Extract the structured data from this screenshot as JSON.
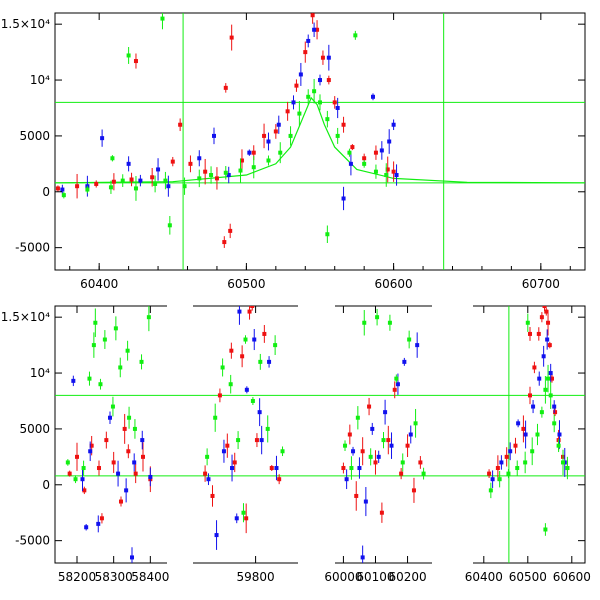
{
  "colors": {
    "red": "#ee1111",
    "blue": "#1111ee",
    "green": "#11ee11",
    "frame": "#000000"
  },
  "chart_data": [
    {
      "type": "scatter",
      "title": "",
      "xlabel": "",
      "ylabel": "",
      "xlim": [
        60370,
        60730
      ],
      "ylim": [
        -7000,
        16000
      ],
      "x_ticks": [
        "60400",
        "60500",
        "60600",
        "60700"
      ],
      "y_ticks": [
        "-5000",
        "0",
        "5000",
        "10⁴",
        "1.5×10⁴"
      ],
      "reference_lines": {
        "horizontal": [
          800,
          8000
        ],
        "vertical": [
          60457,
          60634
        ]
      },
      "model_curve": {
        "color": "green",
        "x": [
          60370,
          60450,
          60500,
          60520,
          60530,
          60538,
          60544,
          60548,
          60553,
          60560,
          60575,
          60600,
          60650,
          60730
        ],
        "y": [
          800,
          900,
          1500,
          2500,
          4000,
          6500,
          8400,
          7800,
          6000,
          4000,
          2000,
          1200,
          850,
          800
        ]
      },
      "series": [
        {
          "color": "red",
          "x": [
            60372,
            60385,
            60398,
            60410,
            60422,
            60425,
            60436,
            60450,
            60455,
            60462,
            60472,
            60480,
            60486,
            60490,
            60497,
            60505,
            60512,
            60520,
            60528,
            60534,
            60540,
            60545,
            60548,
            60552,
            60556,
            60560,
            60566,
            60572,
            60580,
            60588,
            60596,
            60600,
            60485,
            60489
          ],
          "y": [
            300,
            500,
            700,
            900,
            1100,
            11700,
            1300,
            2700,
            6000,
            2500,
            1800,
            1200,
            9300,
            13800,
            2800,
            3500,
            5000,
            5400,
            7200,
            9500,
            12500,
            15800,
            14500,
            12000,
            10000,
            8000,
            6000,
            4000,
            3000,
            3500,
            2000,
            1800,
            -4500,
            -3500
          ]
        },
        {
          "color": "blue",
          "x": [
            60375,
            60392,
            60402,
            60420,
            60428,
            60440,
            60447,
            60468,
            60478,
            60488,
            60502,
            60515,
            60522,
            60532,
            60537,
            60542,
            60546,
            60550,
            60556,
            60562,
            60566,
            60571,
            60586,
            60592,
            60597,
            60600,
            60602
          ],
          "y": [
            200,
            500,
            4800,
            2500,
            1000,
            2000,
            500,
            3000,
            5000,
            1500,
            3500,
            4500,
            6000,
            8000,
            10500,
            13500,
            14500,
            10000,
            12000,
            7500,
            -600,
            2500,
            8500,
            3700,
            4500,
            6000,
            1500
          ]
        },
        {
          "color": "green",
          "x": [
            60376,
            60392,
            60408,
            60416,
            60425,
            60438,
            60445,
            60458,
            60468,
            60476,
            60486,
            60496,
            60505,
            60515,
            60523,
            60530,
            60536,
            60542,
            60546,
            60550,
            60555,
            60562,
            60570,
            60580,
            60588,
            60595,
            60555,
            60574,
            60420,
            60443,
            60409,
            60448
          ],
          "y": [
            -300,
            200,
            400,
            1000,
            300,
            700,
            1000,
            500,
            1200,
            1500,
            1700,
            1900,
            2200,
            2800,
            3500,
            5000,
            7000,
            8500,
            9000,
            8000,
            6500,
            5000,
            3500,
            2500,
            1800,
            1500,
            -3800,
            14000,
            12200,
            15500,
            3000,
            -3000
          ]
        }
      ]
    },
    {
      "type": "scatter",
      "title": "",
      "xlabel": "",
      "ylabel": "",
      "ylim": [
        -7000,
        16000
      ],
      "y_ticks": [
        "-5000",
        "0",
        "5000",
        "10⁴",
        "1.5×10⁴"
      ],
      "reference_lines": {
        "horizontal": [
          800,
          8000
        ],
        "vertical": [
          60457,
          60637
        ]
      },
      "segments": [
        {
          "xlim": [
            58140,
            58440
          ],
          "ticks": [
            "58200",
            "58300",
            "58400"
          ],
          "series": [
            {
              "color": "red",
              "x": [
                58180,
                58200,
                58220,
                58240,
                58260,
                58280,
                58300,
                58320,
                58340,
                58360,
                58380,
                58400,
                58268,
                58330
              ],
              "y": [
                1000,
                2500,
                -500,
                3500,
                1500,
                4000,
                2000,
                -1500,
                3000,
                1000,
                2500,
                500,
                -3000,
                5000
              ]
            },
            {
              "color": "blue",
              "x": [
                58190,
                58215,
                58236,
                58258,
                58290,
                58312,
                58334,
                58356,
                58378,
                58400,
                58225,
                58350
              ],
              "y": [
                9300,
                500,
                3000,
                -3500,
                6000,
                1000,
                -500,
                2000,
                4000,
                700,
                -3800,
                -6500
              ]
            },
            {
              "color": "green",
              "x": [
                58175,
                58196,
                58218,
                58234,
                58250,
                58276,
                58298,
                58318,
                58338,
                58358,
                58376,
                58396,
                58246,
                58264,
                58306,
                58342
              ],
              "y": [
                2000,
                500,
                1500,
                9500,
                14500,
                13000,
                7000,
                10500,
                12000,
                5000,
                11000,
                15000,
                12500,
                9000,
                14000,
                6000
              ]
            }
          ]
        },
        {
          "xlim": [
            59620,
            59920
          ],
          "ticks": [
            "59800"
          ],
          "series": [
            {
              "color": "red",
              "x": [
                59650,
                59672,
                59694,
                59716,
                59738,
                59760,
                59782,
                59790,
                59804,
                59826,
                59848,
                59870,
                59728,
                59772
              ],
              "y": [
                1000,
                -1000,
                8000,
                3500,
                2000,
                11500,
                15500,
                16000,
                4000,
                13500,
                1500,
                500,
                12000,
                -3000
              ]
            },
            {
              "color": "blue",
              "x": [
                59660,
                59684,
                59706,
                59730,
                59752,
                59774,
                59796,
                59818,
                59840,
                59862,
                59744,
                59812
              ],
              "y": [
                500,
                -4500,
                3000,
                1500,
                15500,
                8500,
                13000,
                4000,
                11000,
                1500,
                -3000,
                6500
              ]
            },
            {
              "color": "green",
              "x": [
                59656,
                59680,
                59702,
                59726,
                59748,
                59770,
                59792,
                59814,
                59836,
                59858,
                59880,
                59764
              ],
              "y": [
                2500,
                6000,
                10500,
                9000,
                4000,
                13000,
                7500,
                11000,
                5000,
                12500,
                3000,
                -2500
              ]
            }
          ]
        },
        {
          "xlim": [
            59980,
            60270
          ],
          "ticks": [
            "60000",
            "60100",
            "60200"
          ],
          "series": [
            {
              "color": "red",
              "x": [
                60000,
                60020,
                60040,
                60060,
                60080,
                60100,
                60120,
                60140,
                60160,
                60180,
                60200,
                60220,
                60240
              ],
              "y": [
                1500,
                4500,
                -1000,
                3000,
                7000,
                2000,
                -2500,
                4000,
                8500,
                1000,
                3500,
                -500,
                2000
              ]
            },
            {
              "color": "blue",
              "x": [
                60010,
                60030,
                60050,
                60070,
                60090,
                60110,
                60130,
                60150,
                60170,
                60190,
                60210,
                60230,
                60060
              ],
              "y": [
                500,
                3000,
                1500,
                -1500,
                5000,
                2500,
                6500,
                3500,
                9000,
                11000,
                4500,
                12500,
                -6500
              ]
            },
            {
              "color": "green",
              "x": [
                60005,
                60025,
                60045,
                60065,
                60085,
                60105,
                60125,
                60145,
                60165,
                60185,
                60205,
                60225,
                60250
              ],
              "y": [
                3500,
                1500,
                6000,
                14500,
                2500,
                15000,
                4000,
                14500,
                9500,
                2000,
                13000,
                5500,
                1000
              ]
            }
          ]
        },
        {
          "xlim": [
            60380,
            60630
          ],
          "ticks": [
            "60400",
            "60500",
            "60600"
          ],
          "series": [
            {
              "color": "red",
              "x": [
                60412,
                60432,
                60452,
                60472,
                60490,
                60505,
                60515,
                60525,
                60532,
                60538,
                60542,
                60546,
                60550,
                60555,
                60562,
                60570,
                60580,
                60590,
                60505
              ],
              "y": [
                1000,
                1500,
                2500,
                3500,
                5000,
                8000,
                10500,
                13500,
                15000,
                16000,
                15500,
                14500,
                12500,
                9500,
                6500,
                4000,
                2500,
                1500,
                13500
              ]
            },
            {
              "color": "blue",
              "x": [
                60420,
                60440,
                60460,
                60478,
                60495,
                60512,
                60526,
                60536,
                60544,
                60552,
                60560,
                60572,
                60584
              ],
              "y": [
                500,
                2000,
                3000,
                5500,
                4500,
                7000,
                9500,
                11500,
                13000,
                10000,
                7000,
                4500,
                2000
              ]
            },
            {
              "color": "green",
              "x": [
                60416,
                60436,
                60456,
                60476,
                60494,
                60510,
                60522,
                60532,
                60540,
                60546,
                60552,
                60560,
                60570,
                60580,
                60590,
                60500,
                60540
              ],
              "y": [
                -500,
                500,
                1000,
                1500,
                2000,
                3000,
                4500,
                6500,
                8500,
                9500,
                8000,
                5500,
                3500,
                2000,
                1500,
                14500,
                -4000
              ]
            }
          ]
        }
      ]
    }
  ]
}
